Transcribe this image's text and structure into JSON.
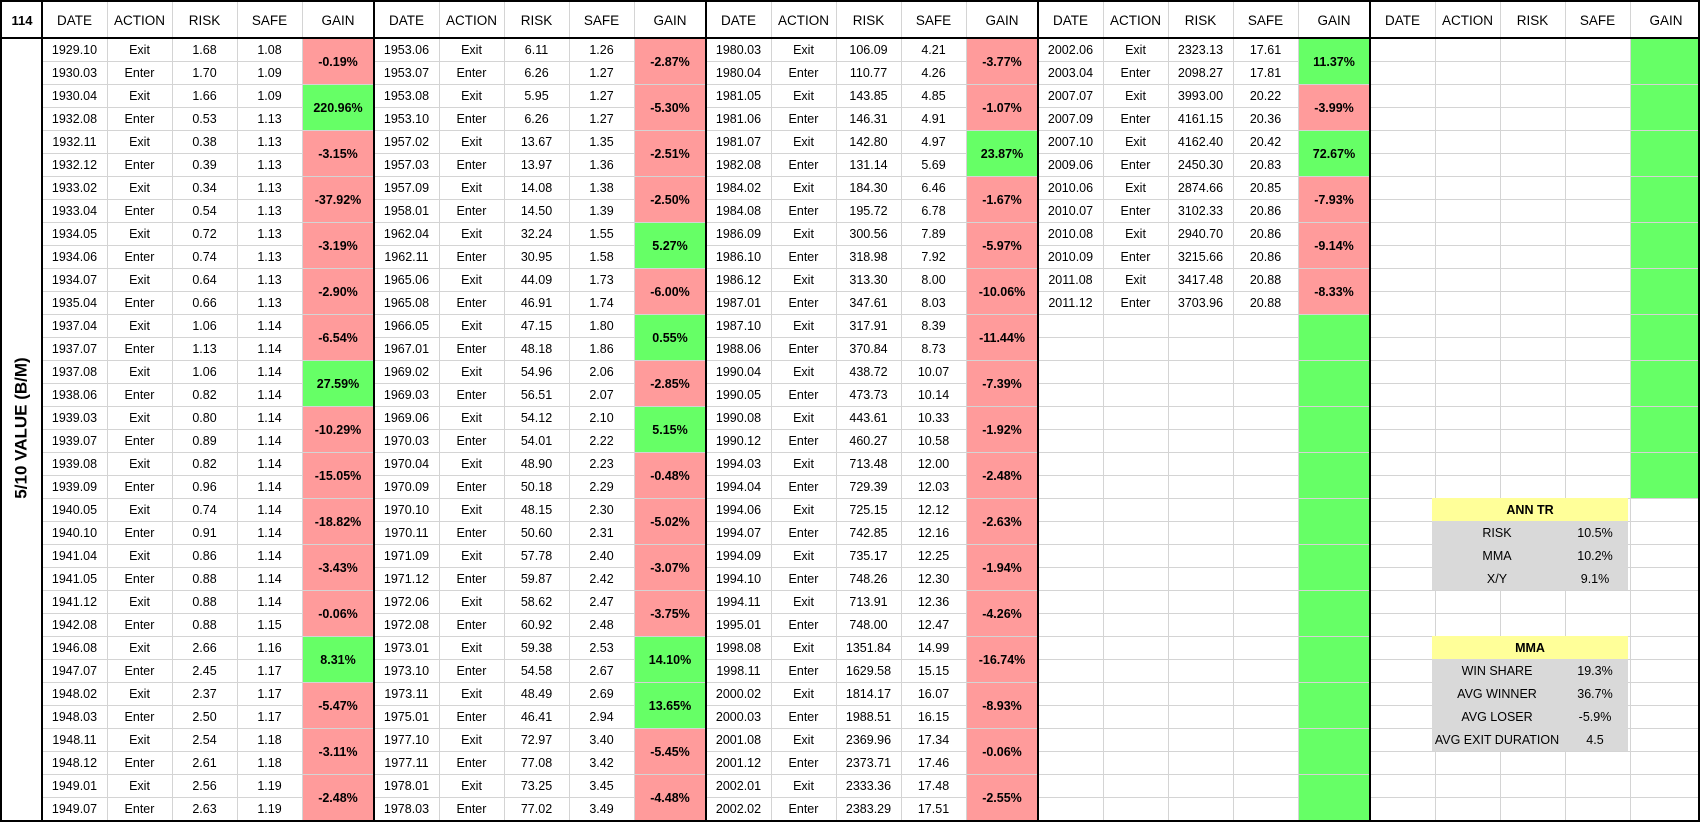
{
  "sheet_number": "114",
  "side_label": "5/10 VALUE (B/M)",
  "headers": [
    "DATE",
    "ACTION",
    "RISK",
    "SAFE",
    "GAIN"
  ],
  "colors": {
    "negative": "#ff9b9b",
    "positive": "#66ff66",
    "summary_title": "#ffff99",
    "summary_row": "#d9d9d9"
  },
  "blocks": [
    {
      "rows": [
        [
          "1929.10",
          "Exit",
          "1.68",
          "1.08"
        ],
        [
          "1930.03",
          "Enter",
          "1.70",
          "1.09"
        ],
        [
          "1930.04",
          "Exit",
          "1.66",
          "1.09"
        ],
        [
          "1932.08",
          "Enter",
          "0.53",
          "1.13"
        ],
        [
          "1932.11",
          "Exit",
          "0.38",
          "1.13"
        ],
        [
          "1932.12",
          "Enter",
          "0.39",
          "1.13"
        ],
        [
          "1933.02",
          "Exit",
          "0.34",
          "1.13"
        ],
        [
          "1933.04",
          "Enter",
          "0.54",
          "1.13"
        ],
        [
          "1934.05",
          "Exit",
          "0.72",
          "1.13"
        ],
        [
          "1934.06",
          "Enter",
          "0.74",
          "1.13"
        ],
        [
          "1934.07",
          "Exit",
          "0.64",
          "1.13"
        ],
        [
          "1935.04",
          "Enter",
          "0.66",
          "1.13"
        ],
        [
          "1937.04",
          "Exit",
          "1.06",
          "1.14"
        ],
        [
          "1937.07",
          "Enter",
          "1.13",
          "1.14"
        ],
        [
          "1937.08",
          "Exit",
          "1.06",
          "1.14"
        ],
        [
          "1938.06",
          "Enter",
          "0.82",
          "1.14"
        ],
        [
          "1939.03",
          "Exit",
          "0.80",
          "1.14"
        ],
        [
          "1939.07",
          "Enter",
          "0.89",
          "1.14"
        ],
        [
          "1939.08",
          "Exit",
          "0.82",
          "1.14"
        ],
        [
          "1939.09",
          "Enter",
          "0.96",
          "1.14"
        ],
        [
          "1940.05",
          "Exit",
          "0.74",
          "1.14"
        ],
        [
          "1940.10",
          "Enter",
          "0.91",
          "1.14"
        ],
        [
          "1941.04",
          "Exit",
          "0.86",
          "1.14"
        ],
        [
          "1941.05",
          "Enter",
          "0.88",
          "1.14"
        ],
        [
          "1941.12",
          "Exit",
          "0.88",
          "1.14"
        ],
        [
          "1942.08",
          "Enter",
          "0.88",
          "1.15"
        ],
        [
          "1946.08",
          "Exit",
          "2.66",
          "1.16"
        ],
        [
          "1947.07",
          "Enter",
          "2.45",
          "1.17"
        ],
        [
          "1948.02",
          "Exit",
          "2.37",
          "1.17"
        ],
        [
          "1948.03",
          "Enter",
          "2.50",
          "1.17"
        ],
        [
          "1948.11",
          "Exit",
          "2.54",
          "1.18"
        ],
        [
          "1948.12",
          "Enter",
          "2.61",
          "1.18"
        ],
        [
          "1949.01",
          "Exit",
          "2.56",
          "1.19"
        ],
        [
          "1949.07",
          "Enter",
          "2.63",
          "1.19"
        ]
      ],
      "gains": [
        {
          "text": "-0.19%",
          "sign": "neg"
        },
        {
          "text": "220.96%",
          "sign": "pos"
        },
        {
          "text": "-3.15%",
          "sign": "neg"
        },
        {
          "text": "-37.92%",
          "sign": "neg"
        },
        {
          "text": "-3.19%",
          "sign": "neg"
        },
        {
          "text": "-2.90%",
          "sign": "neg"
        },
        {
          "text": "-6.54%",
          "sign": "neg"
        },
        {
          "text": "27.59%",
          "sign": "pos"
        },
        {
          "text": "-10.29%",
          "sign": "neg"
        },
        {
          "text": "-15.05%",
          "sign": "neg"
        },
        {
          "text": "-18.82%",
          "sign": "neg"
        },
        {
          "text": "-3.43%",
          "sign": "neg"
        },
        {
          "text": "-0.06%",
          "sign": "neg"
        },
        {
          "text": "8.31%",
          "sign": "pos"
        },
        {
          "text": "-5.47%",
          "sign": "neg"
        },
        {
          "text": "-3.11%",
          "sign": "neg"
        },
        {
          "text": "-2.48%",
          "sign": "neg"
        }
      ]
    },
    {
      "rows": [
        [
          "1953.06",
          "Exit",
          "6.11",
          "1.26"
        ],
        [
          "1953.07",
          "Enter",
          "6.26",
          "1.27"
        ],
        [
          "1953.08",
          "Exit",
          "5.95",
          "1.27"
        ],
        [
          "1953.10",
          "Enter",
          "6.26",
          "1.27"
        ],
        [
          "1957.02",
          "Exit",
          "13.67",
          "1.35"
        ],
        [
          "1957.03",
          "Enter",
          "13.97",
          "1.36"
        ],
        [
          "1957.09",
          "Exit",
          "14.08",
          "1.38"
        ],
        [
          "1958.01",
          "Enter",
          "14.50",
          "1.39"
        ],
        [
          "1962.04",
          "Exit",
          "32.24",
          "1.55"
        ],
        [
          "1962.11",
          "Enter",
          "30.95",
          "1.58"
        ],
        [
          "1965.06",
          "Exit",
          "44.09",
          "1.73"
        ],
        [
          "1965.08",
          "Enter",
          "46.91",
          "1.74"
        ],
        [
          "1966.05",
          "Exit",
          "47.15",
          "1.80"
        ],
        [
          "1967.01",
          "Enter",
          "48.18",
          "1.86"
        ],
        [
          "1969.02",
          "Exit",
          "54.96",
          "2.06"
        ],
        [
          "1969.03",
          "Enter",
          "56.51",
          "2.07"
        ],
        [
          "1969.06",
          "Exit",
          "54.12",
          "2.10"
        ],
        [
          "1970.03",
          "Enter",
          "54.01",
          "2.22"
        ],
        [
          "1970.04",
          "Exit",
          "48.90",
          "2.23"
        ],
        [
          "1970.09",
          "Enter",
          "50.18",
          "2.29"
        ],
        [
          "1970.10",
          "Exit",
          "48.15",
          "2.30"
        ],
        [
          "1970.11",
          "Enter",
          "50.60",
          "2.31"
        ],
        [
          "1971.09",
          "Exit",
          "57.78",
          "2.40"
        ],
        [
          "1971.12",
          "Enter",
          "59.87",
          "2.42"
        ],
        [
          "1972.06",
          "Exit",
          "58.62",
          "2.47"
        ],
        [
          "1972.08",
          "Enter",
          "60.92",
          "2.48"
        ],
        [
          "1973.01",
          "Exit",
          "59.38",
          "2.53"
        ],
        [
          "1973.10",
          "Enter",
          "54.58",
          "2.67"
        ],
        [
          "1973.11",
          "Exit",
          "48.49",
          "2.69"
        ],
        [
          "1975.01",
          "Enter",
          "46.41",
          "2.94"
        ],
        [
          "1977.10",
          "Exit",
          "72.97",
          "3.40"
        ],
        [
          "1977.11",
          "Enter",
          "77.08",
          "3.42"
        ],
        [
          "1978.01",
          "Exit",
          "73.25",
          "3.45"
        ],
        [
          "1978.03",
          "Enter",
          "77.02",
          "3.49"
        ]
      ],
      "gains": [
        {
          "text": "-2.87%",
          "sign": "neg"
        },
        {
          "text": "-5.30%",
          "sign": "neg"
        },
        {
          "text": "-2.51%",
          "sign": "neg"
        },
        {
          "text": "-2.50%",
          "sign": "neg"
        },
        {
          "text": "5.27%",
          "sign": "pos"
        },
        {
          "text": "-6.00%",
          "sign": "neg"
        },
        {
          "text": "0.55%",
          "sign": "pos"
        },
        {
          "text": "-2.85%",
          "sign": "neg"
        },
        {
          "text": "5.15%",
          "sign": "pos"
        },
        {
          "text": "-0.48%",
          "sign": "neg"
        },
        {
          "text": "-5.02%",
          "sign": "neg"
        },
        {
          "text": "-3.07%",
          "sign": "neg"
        },
        {
          "text": "-3.75%",
          "sign": "neg"
        },
        {
          "text": "14.10%",
          "sign": "pos"
        },
        {
          "text": "13.65%",
          "sign": "pos"
        },
        {
          "text": "-5.45%",
          "sign": "neg"
        },
        {
          "text": "-4.48%",
          "sign": "neg"
        }
      ]
    },
    {
      "rows": [
        [
          "1980.03",
          "Exit",
          "106.09",
          "4.21"
        ],
        [
          "1980.04",
          "Enter",
          "110.77",
          "4.26"
        ],
        [
          "1981.05",
          "Exit",
          "143.85",
          "4.85"
        ],
        [
          "1981.06",
          "Enter",
          "146.31",
          "4.91"
        ],
        [
          "1981.07",
          "Exit",
          "142.80",
          "4.97"
        ],
        [
          "1982.08",
          "Enter",
          "131.14",
          "5.69"
        ],
        [
          "1984.02",
          "Exit",
          "184.30",
          "6.46"
        ],
        [
          "1984.08",
          "Enter",
          "195.72",
          "6.78"
        ],
        [
          "1986.09",
          "Exit",
          "300.56",
          "7.89"
        ],
        [
          "1986.10",
          "Enter",
          "318.98",
          "7.92"
        ],
        [
          "1986.12",
          "Exit",
          "313.30",
          "8.00"
        ],
        [
          "1987.01",
          "Enter",
          "347.61",
          "8.03"
        ],
        [
          "1987.10",
          "Exit",
          "317.91",
          "8.39"
        ],
        [
          "1988.06",
          "Enter",
          "370.84",
          "8.73"
        ],
        [
          "1990.04",
          "Exit",
          "438.72",
          "10.07"
        ],
        [
          "1990.05",
          "Enter",
          "473.73",
          "10.14"
        ],
        [
          "1990.08",
          "Exit",
          "443.61",
          "10.33"
        ],
        [
          "1990.12",
          "Enter",
          "460.27",
          "10.58"
        ],
        [
          "1994.03",
          "Exit",
          "713.48",
          "12.00"
        ],
        [
          "1994.04",
          "Enter",
          "729.39",
          "12.03"
        ],
        [
          "1994.06",
          "Exit",
          "725.15",
          "12.12"
        ],
        [
          "1994.07",
          "Enter",
          "742.85",
          "12.16"
        ],
        [
          "1994.09",
          "Exit",
          "735.17",
          "12.25"
        ],
        [
          "1994.10",
          "Enter",
          "748.26",
          "12.30"
        ],
        [
          "1994.11",
          "Exit",
          "713.91",
          "12.36"
        ],
        [
          "1995.01",
          "Enter",
          "748.00",
          "12.47"
        ],
        [
          "1998.08",
          "Exit",
          "1351.84",
          "14.99"
        ],
        [
          "1998.11",
          "Enter",
          "1629.58",
          "15.15"
        ],
        [
          "2000.02",
          "Exit",
          "1814.17",
          "16.07"
        ],
        [
          "2000.03",
          "Enter",
          "1988.51",
          "16.15"
        ],
        [
          "2001.08",
          "Exit",
          "2369.96",
          "17.34"
        ],
        [
          "2001.12",
          "Enter",
          "2373.71",
          "17.46"
        ],
        [
          "2002.01",
          "Exit",
          "2333.36",
          "17.48"
        ],
        [
          "2002.02",
          "Enter",
          "2383.29",
          "17.51"
        ]
      ],
      "gains": [
        {
          "text": "-3.77%",
          "sign": "neg"
        },
        {
          "text": "-1.07%",
          "sign": "neg"
        },
        {
          "text": "23.87%",
          "sign": "pos"
        },
        {
          "text": "-1.67%",
          "sign": "neg"
        },
        {
          "text": "-5.97%",
          "sign": "neg"
        },
        {
          "text": "-10.06%",
          "sign": "neg"
        },
        {
          "text": "-11.44%",
          "sign": "neg"
        },
        {
          "text": "-7.39%",
          "sign": "neg"
        },
        {
          "text": "-1.92%",
          "sign": "neg"
        },
        {
          "text": "-2.48%",
          "sign": "neg"
        },
        {
          "text": "-2.63%",
          "sign": "neg"
        },
        {
          "text": "-1.94%",
          "sign": "neg"
        },
        {
          "text": "-4.26%",
          "sign": "neg"
        },
        {
          "text": "-16.74%",
          "sign": "neg"
        },
        {
          "text": "-8.93%",
          "sign": "neg"
        },
        {
          "text": "-0.06%",
          "sign": "neg"
        },
        {
          "text": "-2.55%",
          "sign": "neg"
        }
      ]
    },
    {
      "rows": [
        [
          "2002.06",
          "Exit",
          "2323.13",
          "17.61"
        ],
        [
          "2003.04",
          "Enter",
          "2098.27",
          "17.81"
        ],
        [
          "2007.07",
          "Exit",
          "3993.00",
          "20.22"
        ],
        [
          "2007.09",
          "Enter",
          "4161.15",
          "20.36"
        ],
        [
          "2007.10",
          "Exit",
          "4162.40",
          "20.42"
        ],
        [
          "2009.06",
          "Enter",
          "2450.30",
          "20.83"
        ],
        [
          "2010.06",
          "Exit",
          "2874.66",
          "20.85"
        ],
        [
          "2010.07",
          "Enter",
          "3102.33",
          "20.86"
        ],
        [
          "2010.08",
          "Exit",
          "2940.70",
          "20.86"
        ],
        [
          "2010.09",
          "Enter",
          "3215.66",
          "20.86"
        ],
        [
          "2011.08",
          "Exit",
          "3417.48",
          "20.88"
        ],
        [
          "2011.12",
          "Enter",
          "3703.96",
          "20.88"
        ]
      ],
      "gains": [
        {
          "text": "11.37%",
          "sign": "pos"
        },
        {
          "text": "-3.99%",
          "sign": "neg"
        },
        {
          "text": "72.67%",
          "sign": "pos"
        },
        {
          "text": "-7.93%",
          "sign": "neg"
        },
        {
          "text": "-9.14%",
          "sign": "neg"
        },
        {
          "text": "-8.33%",
          "sign": "neg"
        },
        {
          "text": "",
          "sign": "pos"
        },
        {
          "text": "",
          "sign": "pos"
        },
        {
          "text": "",
          "sign": "pos"
        },
        {
          "text": "",
          "sign": "pos"
        },
        {
          "text": "",
          "sign": "pos"
        },
        {
          "text": "",
          "sign": "pos"
        },
        {
          "text": "",
          "sign": "pos"
        },
        {
          "text": "",
          "sign": "pos"
        },
        {
          "text": "",
          "sign": "pos"
        },
        {
          "text": "",
          "sign": "pos"
        },
        {
          "text": "",
          "sign": "pos"
        }
      ]
    },
    {
      "rows": [],
      "gains": [
        {
          "text": "",
          "sign": "pos"
        },
        {
          "text": "",
          "sign": "pos"
        },
        {
          "text": "",
          "sign": "pos"
        },
        {
          "text": "",
          "sign": "pos"
        },
        {
          "text": "",
          "sign": "pos"
        },
        {
          "text": "",
          "sign": "pos"
        },
        {
          "text": "",
          "sign": "pos"
        },
        {
          "text": "",
          "sign": "pos"
        },
        {
          "text": "",
          "sign": "pos"
        },
        {
          "text": "",
          "sign": "pos"
        }
      ]
    }
  ],
  "summary": {
    "ann_tr": {
      "title": "ANN TR",
      "rows": [
        {
          "label": "RISK",
          "value": "10.5%"
        },
        {
          "label": "MMA",
          "value": "10.2%"
        },
        {
          "label": "X/Y",
          "value": "9.1%"
        }
      ]
    },
    "mma": {
      "title": "MMA",
      "rows": [
        {
          "label": "WIN SHARE",
          "value": "19.3%"
        },
        {
          "label": "AVG WINNER",
          "value": "36.7%"
        },
        {
          "label": "AVG LOSER",
          "value": "-5.9%"
        },
        {
          "label": "AVG EXIT DURATION",
          "value": "4.5"
        }
      ]
    }
  }
}
